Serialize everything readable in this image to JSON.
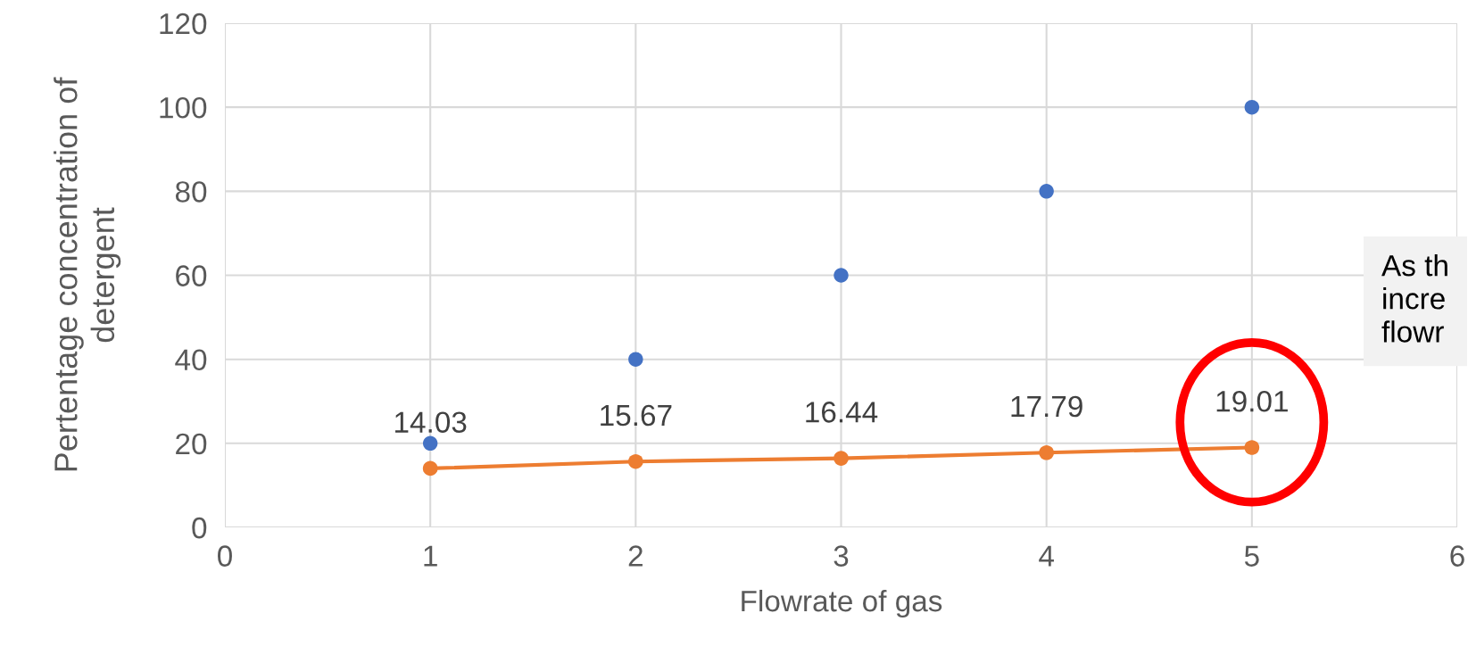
{
  "chart_data": {
    "type": "scatter",
    "xlabel": "Flowrate of gas",
    "ylabel": "Pertentage concentration of\ndetergent",
    "x": [
      1,
      2,
      3,
      4,
      5
    ],
    "series": [
      {
        "color": "#4472c4",
        "values": [
          20,
          40,
          60,
          80,
          100
        ]
      },
      {
        "type": "line",
        "color": "#ed7d31",
        "values": [
          14.03,
          15.67,
          16.44,
          17.79,
          19.01
        ],
        "marker": "circle",
        "data_labels": true
      }
    ],
    "xlim": [
      0,
      6
    ],
    "xticks": [
      0,
      1,
      2,
      3,
      4,
      5,
      6
    ],
    "ylim": [
      0,
      120
    ],
    "yticks": [
      0,
      20,
      40,
      60,
      80,
      100,
      120
    ],
    "grid": true,
    "annotations": [
      "As th\nincre\nflowr"
    ]
  }
}
